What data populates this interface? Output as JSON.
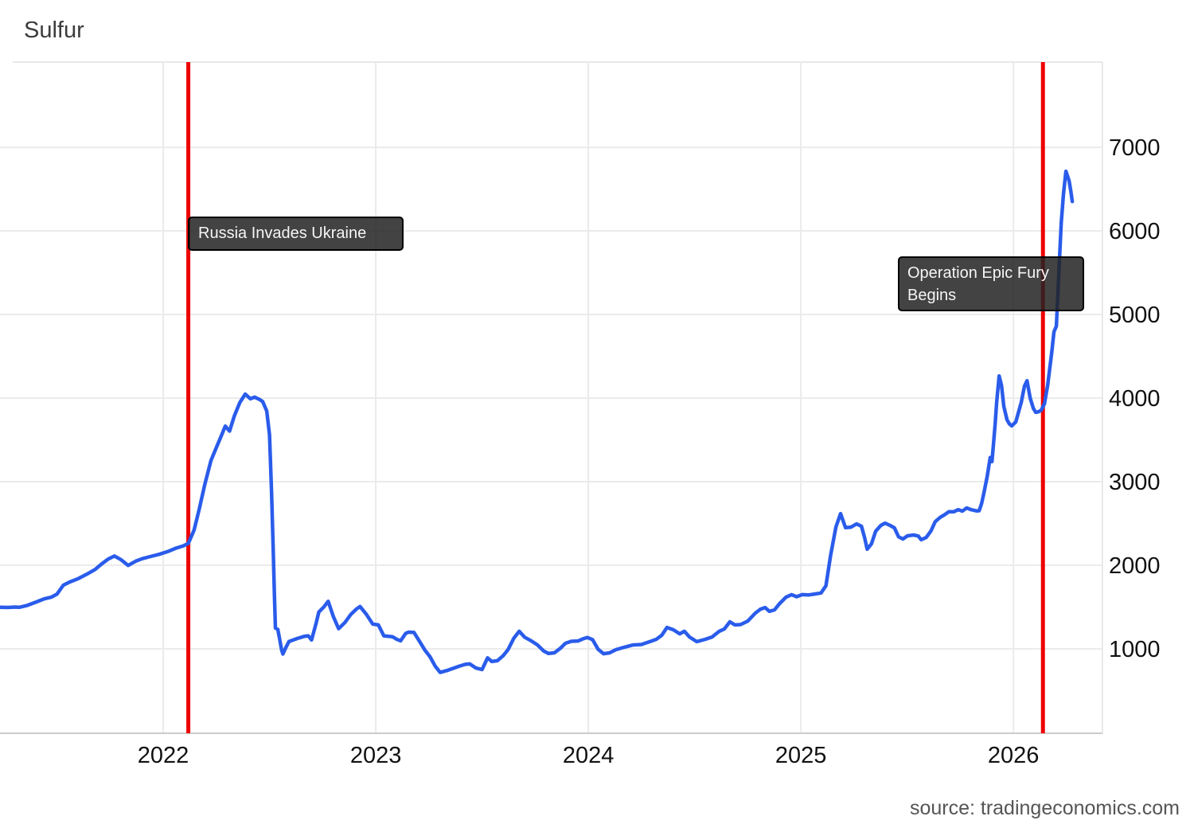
{
  "title": "Sulfur",
  "source_text": "source: tradingeconomics.com",
  "colors": {
    "line": "#2A5CEB",
    "event_line": "#EE0000",
    "grid": "#EBEBEB",
    "plot_border": "#E8E8E8",
    "axis_line": "#CCCCCC",
    "tick_text": "#111111",
    "title_text": "#3C3C3C",
    "source_text": "#555555",
    "annotation_bg": "rgba(34,34,34,0.85)",
    "annotation_border": "#000000",
    "annotation_text": "#F5F5F5"
  },
  "chart_data": {
    "type": "line",
    "title": "Sulfur",
    "xlabel": "",
    "ylabel": "",
    "grid": true,
    "legend_position": "none",
    "xlim": [
      2021.232,
      2026.419
    ],
    "ylim": [
      -10,
      8020
    ],
    "x_ticks": [
      {
        "value": 2022,
        "label": "2022"
      },
      {
        "value": 2023,
        "label": "2023"
      },
      {
        "value": 2024,
        "label": "2024"
      },
      {
        "value": 2025,
        "label": "2025"
      },
      {
        "value": 2026,
        "label": "2026"
      }
    ],
    "y_ticks": [
      {
        "value": 1000,
        "label": "1000"
      },
      {
        "value": 2000,
        "label": "2000"
      },
      {
        "value": 3000,
        "label": "3000"
      },
      {
        "value": 4000,
        "label": "4000"
      },
      {
        "value": 5000,
        "label": "5000"
      },
      {
        "value": 6000,
        "label": "6000"
      },
      {
        "value": 7000,
        "label": "7000"
      }
    ],
    "events": [
      {
        "date": 2022.118,
        "label": "Russia Invades Ukraine"
      },
      {
        "date": 2026.139,
        "label": "Operation Epic Fury Begins"
      }
    ],
    "series": [
      {
        "name": "Sulfur",
        "points": [
          [
            2021.232,
            1498
          ],
          [
            2021.27,
            1495
          ],
          [
            2021.3,
            1500
          ],
          [
            2021.325,
            1498
          ],
          [
            2021.36,
            1520
          ],
          [
            2021.4,
            1558
          ],
          [
            2021.44,
            1598
          ],
          [
            2021.475,
            1620
          ],
          [
            2021.5,
            1655
          ],
          [
            2021.53,
            1762
          ],
          [
            2021.56,
            1800
          ],
          [
            2021.6,
            1840
          ],
          [
            2021.64,
            1892
          ],
          [
            2021.68,
            1950
          ],
          [
            2021.71,
            2015
          ],
          [
            2021.74,
            2072
          ],
          [
            2021.77,
            2110
          ],
          [
            2021.8,
            2068
          ],
          [
            2021.835,
            1998
          ],
          [
            2021.87,
            2048
          ],
          [
            2021.9,
            2078
          ],
          [
            2021.94,
            2105
          ],
          [
            2021.98,
            2130
          ],
          [
            2022.02,
            2163
          ],
          [
            2022.06,
            2205
          ],
          [
            2022.095,
            2232
          ],
          [
            2022.118,
            2262
          ],
          [
            2022.145,
            2420
          ],
          [
            2022.17,
            2680
          ],
          [
            2022.195,
            2960
          ],
          [
            2022.225,
            3255
          ],
          [
            2022.255,
            3440
          ],
          [
            2022.275,
            3560
          ],
          [
            2022.292,
            3665
          ],
          [
            2022.312,
            3605
          ],
          [
            2022.335,
            3790
          ],
          [
            2022.36,
            3945
          ],
          [
            2022.386,
            4048
          ],
          [
            2022.41,
            3992
          ],
          [
            2022.43,
            4012
          ],
          [
            2022.452,
            3985
          ],
          [
            2022.468,
            3958
          ],
          [
            2022.487,
            3845
          ],
          [
            2022.5,
            3560
          ],
          [
            2022.51,
            2860
          ],
          [
            2022.518,
            2130
          ],
          [
            2022.523,
            1660
          ],
          [
            2022.528,
            1248
          ],
          [
            2022.539,
            1232
          ],
          [
            2022.547,
            1128
          ],
          [
            2022.557,
            985
          ],
          [
            2022.563,
            938
          ],
          [
            2022.576,
            1012
          ],
          [
            2022.592,
            1088
          ],
          [
            2022.63,
            1124
          ],
          [
            2022.662,
            1148
          ],
          [
            2022.682,
            1156
          ],
          [
            2022.698,
            1106
          ],
          [
            2022.72,
            1312
          ],
          [
            2022.732,
            1440
          ],
          [
            2022.756,
            1502
          ],
          [
            2022.776,
            1568
          ],
          [
            2022.8,
            1388
          ],
          [
            2022.825,
            1242
          ],
          [
            2022.855,
            1316
          ],
          [
            2022.882,
            1410
          ],
          [
            2022.91,
            1478
          ],
          [
            2022.926,
            1506
          ],
          [
            2022.956,
            1412
          ],
          [
            2022.986,
            1296
          ],
          [
            2023.012,
            1286
          ],
          [
            2023.038,
            1156
          ],
          [
            2023.06,
            1150
          ],
          [
            2023.08,
            1144
          ],
          [
            2023.1,
            1112
          ],
          [
            2023.117,
            1096
          ],
          [
            2023.14,
            1184
          ],
          [
            2023.154,
            1200
          ],
          [
            2023.18,
            1196
          ],
          [
            2023.21,
            1072
          ],
          [
            2023.232,
            982
          ],
          [
            2023.255,
            905
          ],
          [
            2023.28,
            792
          ],
          [
            2023.303,
            718
          ],
          [
            2023.34,
            744
          ],
          [
            2023.39,
            790
          ],
          [
            2023.42,
            814
          ],
          [
            2023.442,
            820
          ],
          [
            2023.47,
            772
          ],
          [
            2023.5,
            752
          ],
          [
            2023.526,
            892
          ],
          [
            2023.546,
            848
          ],
          [
            2023.572,
            858
          ],
          [
            2023.6,
            920
          ],
          [
            2023.622,
            990
          ],
          [
            2023.65,
            1128
          ],
          [
            2023.675,
            1210
          ],
          [
            2023.7,
            1140
          ],
          [
            2023.73,
            1098
          ],
          [
            2023.76,
            1048
          ],
          [
            2023.79,
            975
          ],
          [
            2023.812,
            945
          ],
          [
            2023.84,
            952
          ],
          [
            2023.87,
            1010
          ],
          [
            2023.892,
            1066
          ],
          [
            2023.92,
            1090
          ],
          [
            2023.952,
            1094
          ],
          [
            2023.975,
            1120
          ],
          [
            2023.996,
            1136
          ],
          [
            2024.02,
            1110
          ],
          [
            2024.046,
            995
          ],
          [
            2024.072,
            942
          ],
          [
            2024.1,
            952
          ],
          [
            2024.13,
            990
          ],
          [
            2024.17,
            1020
          ],
          [
            2024.21,
            1046
          ],
          [
            2024.25,
            1052
          ],
          [
            2024.29,
            1086
          ],
          [
            2024.32,
            1114
          ],
          [
            2024.346,
            1164
          ],
          [
            2024.37,
            1256
          ],
          [
            2024.4,
            1228
          ],
          [
            2024.43,
            1180
          ],
          [
            2024.452,
            1210
          ],
          [
            2024.476,
            1142
          ],
          [
            2024.51,
            1086
          ],
          [
            2024.55,
            1114
          ],
          [
            2024.582,
            1142
          ],
          [
            2024.616,
            1210
          ],
          [
            2024.64,
            1238
          ],
          [
            2024.666,
            1324
          ],
          [
            2024.69,
            1286
          ],
          [
            2024.716,
            1290
          ],
          [
            2024.75,
            1332
          ],
          [
            2024.786,
            1428
          ],
          [
            2024.81,
            1475
          ],
          [
            2024.832,
            1494
          ],
          [
            2024.852,
            1448
          ],
          [
            2024.876,
            1466
          ],
          [
            2024.9,
            1542
          ],
          [
            2024.93,
            1618
          ],
          [
            2024.956,
            1648
          ],
          [
            2024.98,
            1624
          ],
          [
            2025.006,
            1648
          ],
          [
            2025.035,
            1645
          ],
          [
            2025.065,
            1656
          ],
          [
            2025.095,
            1668
          ],
          [
            2025.118,
            1755
          ],
          [
            2025.14,
            2120
          ],
          [
            2025.165,
            2460
          ],
          [
            2025.187,
            2618
          ],
          [
            2025.21,
            2450
          ],
          [
            2025.236,
            2456
          ],
          [
            2025.262,
            2494
          ],
          [
            2025.285,
            2468
          ],
          [
            2025.3,
            2330
          ],
          [
            2025.312,
            2192
          ],
          [
            2025.332,
            2256
          ],
          [
            2025.352,
            2408
          ],
          [
            2025.376,
            2476
          ],
          [
            2025.396,
            2504
          ],
          [
            2025.42,
            2476
          ],
          [
            2025.44,
            2448
          ],
          [
            2025.46,
            2340
          ],
          [
            2025.48,
            2314
          ],
          [
            2025.502,
            2352
          ],
          [
            2025.53,
            2362
          ],
          [
            2025.552,
            2350
          ],
          [
            2025.566,
            2306
          ],
          [
            2025.59,
            2332
          ],
          [
            2025.612,
            2410
          ],
          [
            2025.632,
            2522
          ],
          [
            2025.656,
            2574
          ],
          [
            2025.676,
            2604
          ],
          [
            2025.696,
            2640
          ],
          [
            2025.72,
            2640
          ],
          [
            2025.74,
            2666
          ],
          [
            2025.76,
            2648
          ],
          [
            2025.78,
            2686
          ],
          [
            2025.8,
            2666
          ],
          [
            2025.826,
            2650
          ],
          [
            2025.839,
            2652
          ],
          [
            2025.85,
            2736
          ],
          [
            2025.861,
            2862
          ],
          [
            2025.876,
            3052
          ],
          [
            2025.891,
            3290
          ],
          [
            2025.899,
            3240
          ],
          [
            2025.906,
            3440
          ],
          [
            2025.914,
            3690
          ],
          [
            2025.921,
            3940
          ],
          [
            2025.933,
            4265
          ],
          [
            2025.944,
            4150
          ],
          [
            2025.955,
            3900
          ],
          [
            2025.97,
            3740
          ],
          [
            2025.981,
            3692
          ],
          [
            2025.992,
            3668
          ],
          [
            2026.011,
            3714
          ],
          [
            2026.037,
            3950
          ],
          [
            2026.052,
            4142
          ],
          [
            2026.064,
            4208
          ],
          [
            2026.079,
            4000
          ],
          [
            2026.094,
            3876
          ],
          [
            2026.105,
            3830
          ],
          [
            2026.12,
            3838
          ],
          [
            2026.131,
            3856
          ],
          [
            2026.146,
            3932
          ],
          [
            2026.161,
            4150
          ],
          [
            2026.18,
            4540
          ],
          [
            2026.191,
            4795
          ],
          [
            2026.202,
            4860
          ],
          [
            2026.213,
            5455
          ],
          [
            2026.225,
            6095
          ],
          [
            2026.236,
            6450
          ],
          [
            2026.247,
            6714
          ],
          [
            2026.262,
            6600
          ],
          [
            2026.27,
            6480
          ],
          [
            2026.277,
            6352
          ]
        ]
      }
    ]
  }
}
